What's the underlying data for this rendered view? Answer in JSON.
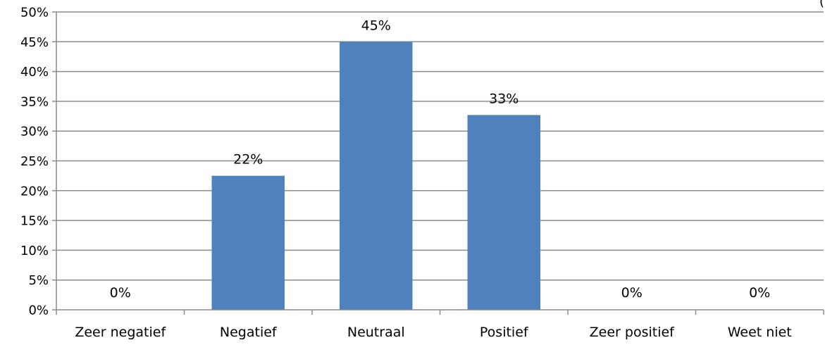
{
  "chart_data": {
    "type": "bar",
    "categories": [
      "Zeer negatief",
      "Negatief",
      "Neutraal",
      "Positief",
      "Zeer positief",
      "Weet niet"
    ],
    "values": [
      0,
      22.5,
      45,
      32.7,
      0,
      0
    ],
    "data_labels": [
      "0%",
      "22%",
      "45%",
      "33%",
      "0%",
      "0%"
    ],
    "ylim": [
      0,
      50
    ],
    "yticks": [
      0,
      5,
      10,
      15,
      20,
      25,
      30,
      35,
      40,
      45,
      50
    ],
    "ytick_labels": [
      "0%",
      "5%",
      "10%",
      "15%",
      "20%",
      "25%",
      "30%",
      "35%",
      "40%",
      "45%",
      "50%"
    ],
    "bar_color": "#4f81bd",
    "grid": true,
    "legend": "none",
    "corner_text": "(",
    "title": "",
    "xlabel": "",
    "ylabel": ""
  }
}
